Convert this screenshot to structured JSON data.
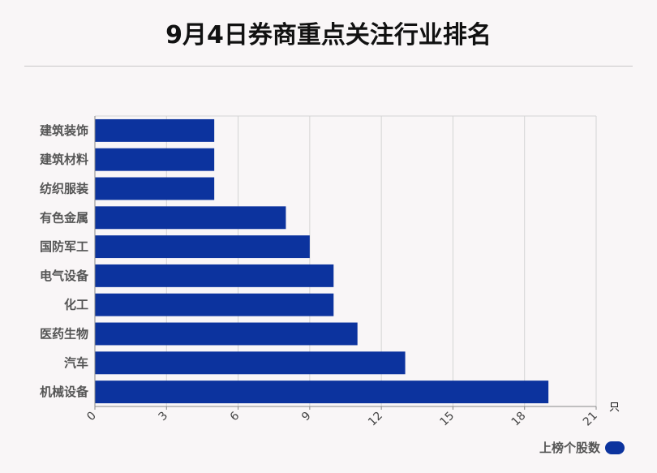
{
  "title": "9月4日券商重点关注行业排名",
  "chart_data": {
    "type": "bar",
    "orientation": "horizontal",
    "categories": [
      "建筑装饰",
      "建筑材料",
      "纺织服装",
      "有色金属",
      "国防军工",
      "电气设备",
      "化工",
      "医药生物",
      "汽车",
      "机械设备"
    ],
    "series": [
      {
        "name": "上榜个股数",
        "values": [
          5,
          5,
          5,
          8,
          9,
          10,
          10,
          11,
          13,
          19
        ]
      }
    ],
    "xticks": [
      0,
      3,
      6,
      9,
      12,
      15,
      18,
      21
    ],
    "xlim": [
      0,
      21
    ],
    "xunit": "只",
    "grid": true,
    "legend_position": "bottom-right",
    "bar_color": "#0c339e"
  }
}
